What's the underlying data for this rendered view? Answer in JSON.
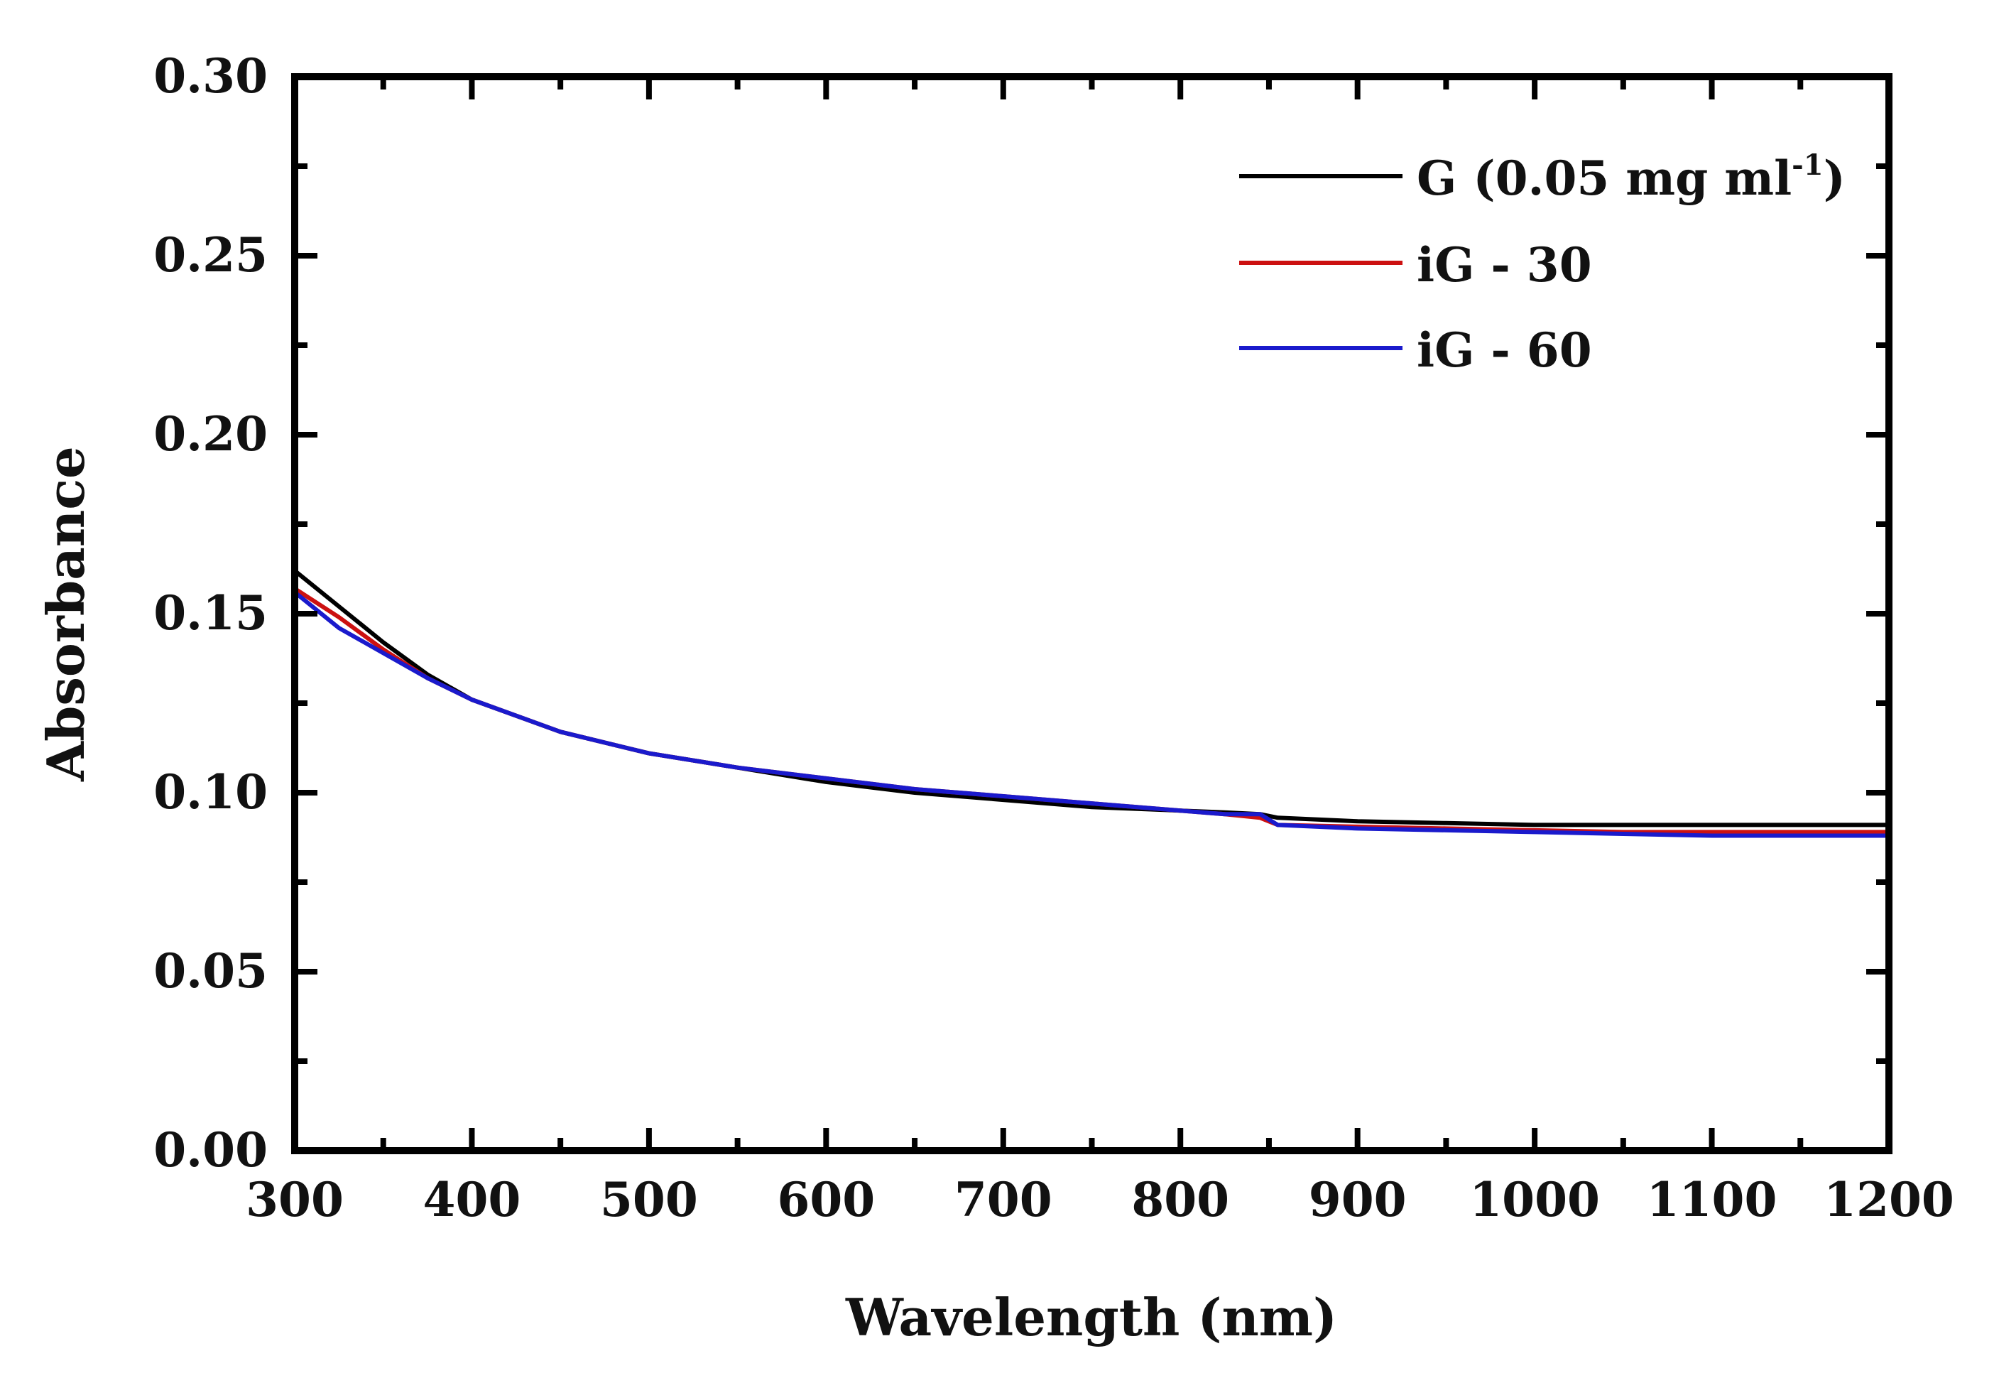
{
  "chart_data": {
    "type": "line",
    "title": "",
    "xlabel": "Wavelength (nm)",
    "ylabel": "Absorbance",
    "xlim": [
      300,
      1200
    ],
    "ylim": [
      0.0,
      0.3
    ],
    "x_ticks": [
      300,
      400,
      500,
      600,
      700,
      800,
      900,
      1000,
      1100,
      1200
    ],
    "y_ticks": [
      0.0,
      0.05,
      0.1,
      0.15,
      0.2,
      0.25,
      0.3
    ],
    "x_tick_labels": [
      "300",
      "400",
      "500",
      "600",
      "700",
      "800",
      "900",
      "1000",
      "1100",
      "1200"
    ],
    "y_tick_labels": [
      "0.00",
      "0.05",
      "0.10",
      "0.15",
      "0.20",
      "0.25",
      "0.30"
    ],
    "legend_position": "top-right",
    "grid": false,
    "x": [
      300,
      325,
      350,
      375,
      400,
      450,
      500,
      550,
      600,
      650,
      700,
      750,
      800,
      825,
      845,
      855,
      900,
      950,
      1000,
      1050,
      1100,
      1150,
      1200
    ],
    "series": [
      {
        "name": "G (0.05 mg ml-1)",
        "label_main": "G (0.05 mg ml",
        "label_sup": "-1",
        "label_end": ")",
        "color": "#000000",
        "values": [
          0.162,
          0.152,
          0.142,
          0.133,
          0.126,
          0.117,
          0.111,
          0.107,
          0.103,
          0.1,
          0.098,
          0.096,
          0.095,
          0.0945,
          0.094,
          0.093,
          0.092,
          0.0915,
          0.091,
          0.091,
          0.091,
          0.091,
          0.091
        ]
      },
      {
        "name": "iG - 30",
        "label": "iG - 30",
        "color": "#cc1111",
        "values": [
          0.157,
          0.149,
          0.14,
          0.132,
          0.126,
          0.117,
          0.111,
          0.107,
          0.104,
          0.101,
          0.099,
          0.097,
          0.095,
          0.094,
          0.093,
          0.091,
          0.0905,
          0.09,
          0.0895,
          0.089,
          0.089,
          0.089,
          0.089
        ]
      },
      {
        "name": "iG - 60",
        "label": "iG - 60",
        "color": "#1a1acc",
        "values": [
          0.156,
          0.146,
          0.139,
          0.132,
          0.126,
          0.117,
          0.111,
          0.107,
          0.104,
          0.101,
          0.099,
          0.097,
          0.095,
          0.094,
          0.094,
          0.091,
          0.09,
          0.0895,
          0.089,
          0.0885,
          0.088,
          0.088,
          0.088
        ]
      }
    ]
  }
}
